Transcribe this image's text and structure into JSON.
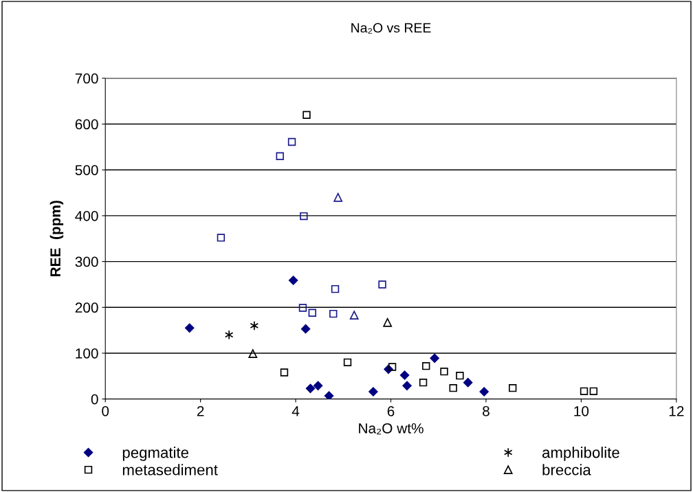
{
  "chart_data": {
    "type": "scatter",
    "title": "Na₂O vs REE",
    "xlabel": "Na₂O wt%",
    "ylabel": "REE  (ppm)",
    "xlim": [
      0,
      12
    ],
    "xticks": [
      0,
      2,
      4,
      6,
      8,
      10,
      12
    ],
    "ylim": [
      0,
      700
    ],
    "yticks": [
      0,
      100,
      200,
      300,
      400,
      500,
      600,
      700
    ],
    "grid": "y",
    "legend": "bottom",
    "series": [
      {
        "name": "pegmatite",
        "color": "#000080",
        "marker": "diamond",
        "x": [
          3.95,
          1.77,
          4.21,
          4.31,
          4.47,
          4.7,
          5.63,
          5.95,
          6.29,
          6.34,
          6.92,
          7.62,
          7.96
        ],
        "values": [
          259,
          155,
          153,
          23,
          29,
          7,
          16,
          65,
          52,
          29,
          89,
          36,
          16
        ]
      },
      {
        "name": "metasediment",
        "color": "#000000",
        "marker": "square",
        "x": [
          4.23,
          3.76,
          5.09,
          6.03,
          6.74,
          6.68,
          7.12,
          7.45,
          7.31,
          8.56,
          10.06,
          10.26
        ],
        "values": [
          620,
          58,
          80,
          70,
          72,
          36,
          60,
          51,
          24,
          24,
          17,
          17
        ]
      },
      {
        "name": "amphibolite",
        "color": "#000000",
        "marker": "cross",
        "x": [
          2.6,
          3.13
        ],
        "values": [
          140,
          160
        ]
      },
      {
        "name": "breccia",
        "color": "#000000",
        "marker": "triangle",
        "x": [
          3.1,
          5.93
        ],
        "values": [
          99,
          167
        ]
      },
      {
        "color": "#1a1a8c",
        "marker": "square",
        "x": [
          3.92,
          3.67,
          4.17,
          2.43,
          4.83,
          5.82,
          4.15,
          4.35,
          4.79
        ],
        "values": [
          561,
          530,
          399,
          352,
          240,
          250,
          199,
          188,
          186
        ]
      },
      {
        "color": "#1a1a8c",
        "marker": "triangle",
        "x": [
          4.89,
          5.23
        ],
        "values": [
          440,
          183
        ]
      }
    ]
  }
}
